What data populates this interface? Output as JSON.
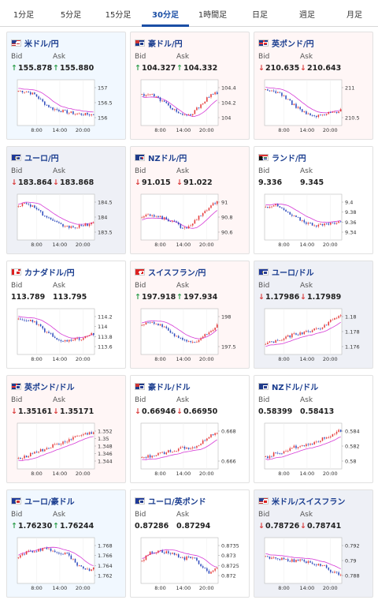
{
  "tabs": [
    "1分足",
    "5分足",
    "15分足",
    "30分足",
    "1時間足",
    "日足",
    "週足",
    "月足"
  ],
  "active_tab": 3,
  "labels": {
    "bid": "Bid",
    "ask": "Ask"
  },
  "colors": {
    "up": "#2a9d4a",
    "down": "#d93a3a",
    "candle_up": "#e53b3b",
    "candle_down": "#2f4bbd",
    "ma": "#d63ad6"
  },
  "cards": [
    {
      "pair": "米ドル/円",
      "flags": [
        "us",
        "jp"
      ],
      "bid": "155.878",
      "ask": "155.880",
      "bid_dir": "up",
      "ask_dir": "up",
      "bg": "#f1f8ff",
      "yticks": [
        "157",
        "156.5",
        "156"
      ],
      "xticks": [
        "8:00",
        "14:00",
        "20:00"
      ]
    },
    {
      "pair": "豪ドル/円",
      "flags": [
        "au",
        "jp"
      ],
      "bid": "104.327",
      "ask": "104.332",
      "bid_dir": "up",
      "ask_dir": "up",
      "bg": "#fff6f6",
      "yticks": [
        "104.4",
        "104.2",
        "104"
      ],
      "xticks": [
        "8:00",
        "14:00",
        "20:00"
      ]
    },
    {
      "pair": "英ポンド/円",
      "flags": [
        "gb",
        "jp"
      ],
      "bid": "210.635",
      "ask": "210.643",
      "bid_dir": "down",
      "ask_dir": "down",
      "bg": "#fff6f6",
      "yticks": [
        "211",
        "210.5"
      ],
      "xticks": [
        "8:00",
        "14:00",
        "20:00"
      ]
    },
    {
      "pair": "ユーロ/円",
      "flags": [
        "eu",
        "jp"
      ],
      "bid": "183.864",
      "ask": "183.868",
      "bid_dir": "down",
      "ask_dir": "down",
      "bg": "#eef0f6",
      "yticks": [
        "184.5",
        "184",
        "183.5"
      ],
      "xticks": [
        "8:00",
        "14:00",
        "20:00"
      ]
    },
    {
      "pair": "NZドル/円",
      "flags": [
        "nz",
        "jp"
      ],
      "bid": "91.015",
      "ask": "91.022",
      "bid_dir": "down",
      "ask_dir": "down",
      "bg": "#fff6f6",
      "yticks": [
        "91",
        "90.8",
        "90.6"
      ],
      "xticks": [
        "8:00",
        "14:00",
        "20:00"
      ]
    },
    {
      "pair": "ランド/円",
      "flags": [
        "za",
        "jp"
      ],
      "bid": "9.336",
      "ask": "9.345",
      "bid_dir": "",
      "ask_dir": "",
      "bg": "#ffffff",
      "yticks": [
        "9.4",
        "9.38",
        "9.36",
        "9.34"
      ],
      "xticks": [
        "8:00",
        "14:00",
        "20:00"
      ]
    },
    {
      "pair": "カナダドル/円",
      "flags": [
        "ca",
        "jp"
      ],
      "bid": "113.789",
      "ask": "113.795",
      "bid_dir": "",
      "ask_dir": "",
      "bg": "#ffffff",
      "yticks": [
        "114.2",
        "114",
        "113.8",
        "113.6"
      ],
      "xticks": [
        "8:00",
        "14:00",
        "20:00"
      ]
    },
    {
      "pair": "スイスフラン/円",
      "flags": [
        "ch",
        "jp"
      ],
      "bid": "197.918",
      "ask": "197.934",
      "bid_dir": "up",
      "ask_dir": "up",
      "bg": "#fff6f6",
      "yticks": [
        "198",
        "197.5"
      ],
      "xticks": [
        "8:00",
        "14:00",
        "20:00"
      ]
    },
    {
      "pair": "ユーロ/ドル",
      "flags": [
        "eu",
        "us"
      ],
      "bid": "1.17986",
      "ask": "1.17989",
      "bid_dir": "down",
      "ask_dir": "down",
      "bg": "#eef0f6",
      "yticks": [
        "1.18",
        "1.178",
        "1.176"
      ],
      "xticks": [
        "8:00",
        "14:00",
        "20:00"
      ]
    },
    {
      "pair": "英ポンド/ドル",
      "flags": [
        "gb",
        "us"
      ],
      "bid": "1.35161",
      "ask": "1.35171",
      "bid_dir": "down",
      "ask_dir": "down",
      "bg": "#fff6f6",
      "yticks": [
        "1.352",
        "1.35",
        "1.348",
        "1.346",
        "1.344"
      ],
      "xticks": [
        "8:00",
        "14:00",
        "20:00"
      ]
    },
    {
      "pair": "豪ドル/ドル",
      "flags": [
        "au",
        "us"
      ],
      "bid": "0.66946",
      "ask": "0.66950",
      "bid_dir": "down",
      "ask_dir": "down",
      "bg": "#ffffff",
      "yticks": [
        "0.668",
        "0.666"
      ],
      "xticks": [
        "8:00",
        "14:00",
        "20:00"
      ]
    },
    {
      "pair": "NZドル/ドル",
      "flags": [
        "nz",
        "us"
      ],
      "bid": "0.58399",
      "ask": "0.58413",
      "bid_dir": "",
      "ask_dir": "",
      "bg": "#ffffff",
      "yticks": [
        "0.584",
        "0.582",
        "0.58"
      ],
      "xticks": [
        "8:00",
        "14:00",
        "20:00"
      ]
    },
    {
      "pair": "ユーロ/豪ドル",
      "flags": [
        "eu",
        "au"
      ],
      "bid": "1.76230",
      "ask": "1.76244",
      "bid_dir": "up",
      "ask_dir": "up",
      "bg": "#f1f8ff",
      "yticks": [
        "1.768",
        "1.766",
        "1.764",
        "1.762"
      ],
      "xticks": [
        "8:00",
        "14:00",
        "20:00"
      ]
    },
    {
      "pair": "ユーロ/英ポンド",
      "flags": [
        "eu",
        "gb"
      ],
      "bid": "0.87286",
      "ask": "0.87294",
      "bid_dir": "",
      "ask_dir": "",
      "bg": "#ffffff",
      "yticks": [
        "0.8735",
        "0.873",
        "0.8725",
        "0.872"
      ],
      "xticks": [
        "8:00",
        "14:00",
        "20:00"
      ]
    },
    {
      "pair": "米ドル/スイスフラン",
      "flags": [
        "us",
        "ch"
      ],
      "bid": "0.78726",
      "ask": "0.78741",
      "bid_dir": "down",
      "ask_dir": "down",
      "bg": "#eef0f6",
      "yticks": [
        "0.792",
        "0.79",
        "0.788"
      ],
      "xticks": [
        "8:00",
        "14:00",
        "20:00"
      ]
    }
  ]
}
